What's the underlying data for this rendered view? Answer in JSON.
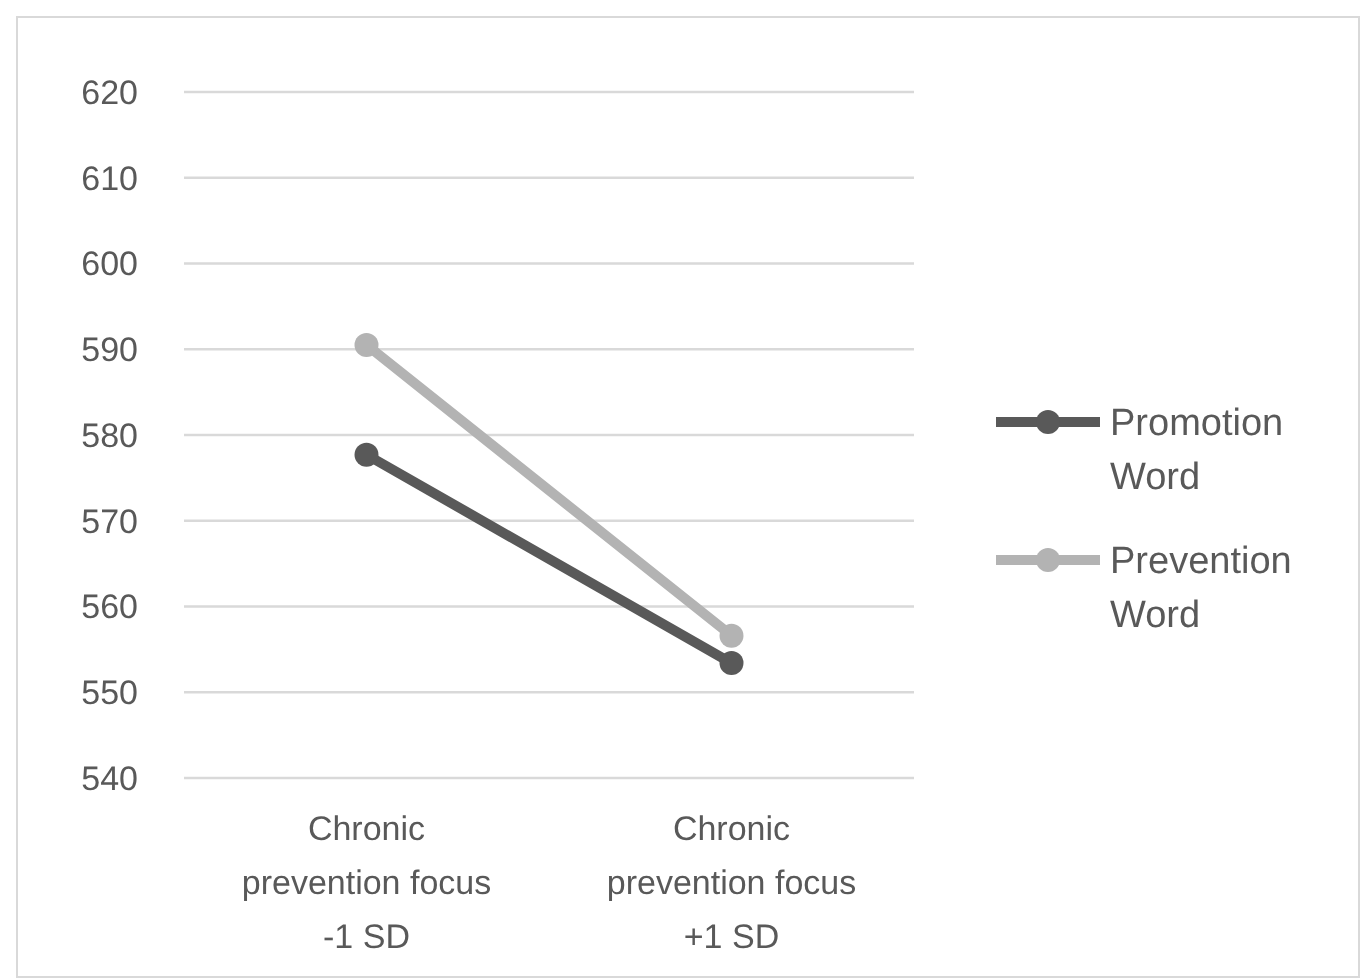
{
  "chart_data": {
    "type": "line",
    "categories": [
      "Chronic\nprevention focus\n-1 SD",
      "Chronic\nprevention focus\n+1 SD"
    ],
    "series": [
      {
        "name": "Promotion\nWord",
        "color": "#595959",
        "values": [
          577.7,
          553.4
        ]
      },
      {
        "name": "Prevention\nWord",
        "color": "#b3b3b3",
        "values": [
          590.5,
          556.6
        ]
      }
    ],
    "ylim": [
      540,
      620
    ],
    "yticks": [
      540,
      550,
      560,
      570,
      580,
      590,
      600,
      610,
      620
    ],
    "grid": "y",
    "legend": "right",
    "marker": "circle",
    "line_style": "solid"
  }
}
